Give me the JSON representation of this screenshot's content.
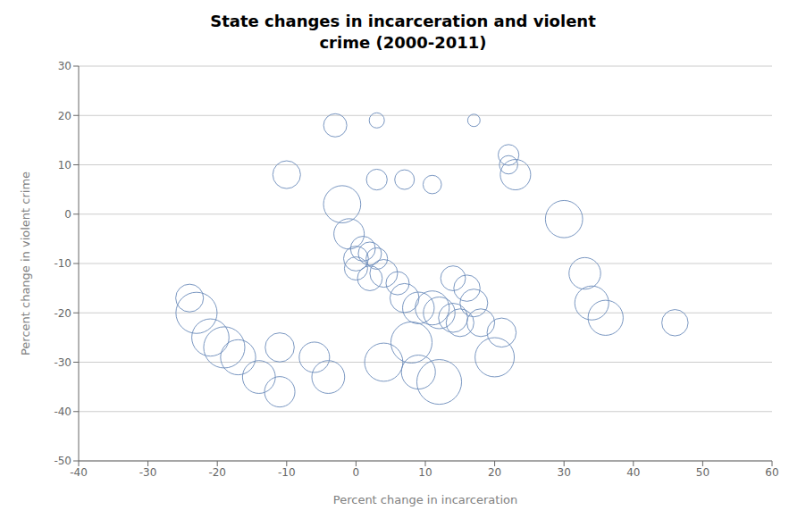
{
  "chart_data": {
    "type": "scatter",
    "title": "State changes in incarceration and violent\ncrime (2000-2011)",
    "xlabel": "Percent change in incarceration",
    "ylabel": "Percent change in violent crime",
    "xlim": [
      -40,
      60
    ],
    "ylim": [
      -50,
      30
    ],
    "xticks": [
      -40,
      -30,
      -20,
      -10,
      0,
      10,
      20,
      30,
      40,
      50,
      60
    ],
    "yticks": [
      -50,
      -40,
      -30,
      -20,
      -10,
      0,
      10,
      20,
      30
    ],
    "grid": "y",
    "color": "#6b8cba",
    "marker": "hollow_circle",
    "points": [
      {
        "x": -3,
        "y": 18,
        "size": 350
      },
      {
        "x": 3,
        "y": 19,
        "size": 150
      },
      {
        "x": 17,
        "y": 19,
        "size": 100
      },
      {
        "x": -10,
        "y": 8,
        "size": 500
      },
      {
        "x": 3,
        "y": 7,
        "size": 280
      },
      {
        "x": 7,
        "y": 7,
        "size": 250
      },
      {
        "x": 11,
        "y": 6,
        "size": 220
      },
      {
        "x": 22,
        "y": 12,
        "size": 280
      },
      {
        "x": 22,
        "y": 10,
        "size": 220
      },
      {
        "x": 23,
        "y": 8,
        "size": 600
      },
      {
        "x": -2,
        "y": 2,
        "size": 900
      },
      {
        "x": -1,
        "y": -4,
        "size": 600
      },
      {
        "x": 1,
        "y": -7,
        "size": 400
      },
      {
        "x": 2,
        "y": -8,
        "size": 350
      },
      {
        "x": 0,
        "y": -9,
        "size": 400
      },
      {
        "x": 3,
        "y": -9,
        "size": 300
      },
      {
        "x": 0,
        "y": -11,
        "size": 350
      },
      {
        "x": 4,
        "y": -12,
        "size": 500
      },
      {
        "x": 2,
        "y": -13,
        "size": 400
      },
      {
        "x": 6,
        "y": -14,
        "size": 350
      },
      {
        "x": 7,
        "y": -17,
        "size": 550
      },
      {
        "x": 9,
        "y": -19,
        "size": 650
      },
      {
        "x": 11,
        "y": -19,
        "size": 750
      },
      {
        "x": 12,
        "y": -20,
        "size": 650
      },
      {
        "x": 14,
        "y": -21,
        "size": 550
      },
      {
        "x": 15,
        "y": -22,
        "size": 500
      },
      {
        "x": 17,
        "y": -18,
        "size": 500
      },
      {
        "x": 18,
        "y": -22,
        "size": 500
      },
      {
        "x": 16,
        "y": -15,
        "size": 450
      },
      {
        "x": 14,
        "y": -13,
        "size": 400
      },
      {
        "x": 8,
        "y": -26,
        "size": 1100
      },
      {
        "x": 4,
        "y": -30,
        "size": 950
      },
      {
        "x": 9,
        "y": -32,
        "size": 750
      },
      {
        "x": 12,
        "y": -34,
        "size": 1300
      },
      {
        "x": 20,
        "y": -29,
        "size": 1000
      },
      {
        "x": 21,
        "y": -24,
        "size": 550
      },
      {
        "x": 30,
        "y": -1,
        "size": 900
      },
      {
        "x": 33,
        "y": -12,
        "size": 650
      },
      {
        "x": 34,
        "y": -18,
        "size": 750
      },
      {
        "x": 36,
        "y": -21,
        "size": 800
      },
      {
        "x": 46,
        "y": -22,
        "size": 450
      },
      {
        "x": -24,
        "y": -17,
        "size": 500
      },
      {
        "x": -23,
        "y": -20,
        "size": 1100
      },
      {
        "x": -21,
        "y": -25,
        "size": 900
      },
      {
        "x": -19,
        "y": -27,
        "size": 1100
      },
      {
        "x": -17,
        "y": -29,
        "size": 800
      },
      {
        "x": -14,
        "y": -33,
        "size": 700
      },
      {
        "x": -11,
        "y": -36,
        "size": 600
      },
      {
        "x": -11,
        "y": -27,
        "size": 550
      },
      {
        "x": -6,
        "y": -29,
        "size": 600
      },
      {
        "x": -4,
        "y": -33,
        "size": 700
      }
    ]
  }
}
